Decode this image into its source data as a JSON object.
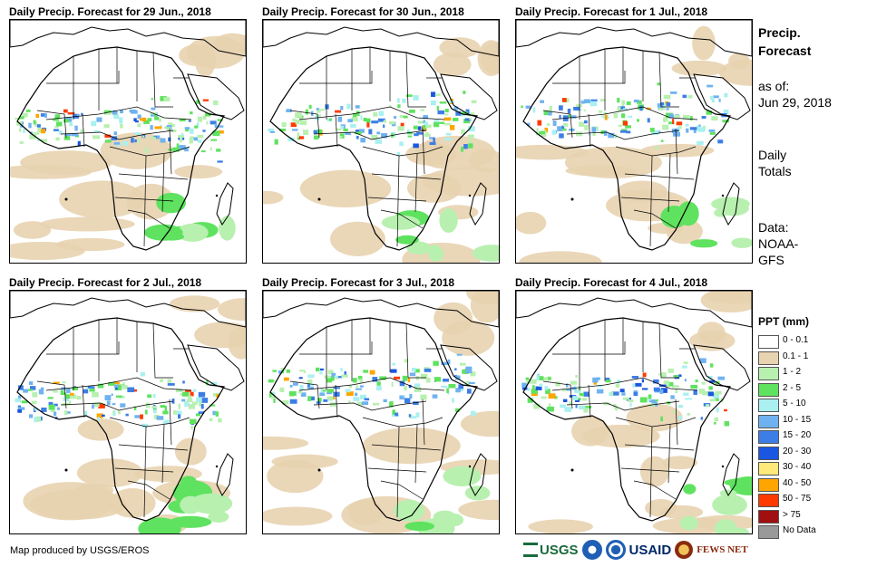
{
  "panels": [
    {
      "title": "Daily Precip. Forecast for 29 Jun., 2018"
    },
    {
      "title": "Daily Precip. Forecast for 30 Jun., 2018"
    },
    {
      "title": "Daily Precip. Forecast for 1 Jul., 2018"
    },
    {
      "title": "Daily Precip. Forecast for 2 Jul., 2018"
    },
    {
      "title": "Daily Precip. Forecast for 3 Jul., 2018"
    },
    {
      "title": "Daily Precip. Forecast for 4 Jul., 2018"
    }
  ],
  "sidebar": {
    "heading_line1": "Precip.",
    "heading_line2": "Forecast",
    "asof_label": "as of:",
    "asof_date": "Jun 29, 2018",
    "totals_line1": "Daily",
    "totals_line2": "Totals",
    "data_label": "Data:",
    "data_source_line1": "NOAA-",
    "data_source_line2": "GFS"
  },
  "legend": {
    "title": "PPT (mm)",
    "items": [
      {
        "label": "0 - 0.1",
        "color": "#ffffff"
      },
      {
        "label": "0.1 - 1",
        "color": "#e8d3b0"
      },
      {
        "label": "1 - 2",
        "color": "#b8f0b0"
      },
      {
        "label": "2 - 5",
        "color": "#5fe25f"
      },
      {
        "label": "5 - 10",
        "color": "#aaf0f0"
      },
      {
        "label": "10 - 15",
        "color": "#6fb2f0"
      },
      {
        "label": "15 - 20",
        "color": "#3d7ee6"
      },
      {
        "label": "20 - 30",
        "color": "#1a56e0"
      },
      {
        "label": "30 - 40",
        "color": "#ffe97a"
      },
      {
        "label": "40 - 50",
        "color": "#ffa500"
      },
      {
        "label": "50 - 75",
        "color": "#ff3a00"
      },
      {
        "label": "> 75",
        "color": "#a01010"
      },
      {
        "label": "No Data",
        "color": "#999999"
      }
    ]
  },
  "footer": {
    "credit": "Map produced by USGS/EROS",
    "logo_usgs": "USGS",
    "logo_usaid": "USAID",
    "logo_fews": "FEWS NET"
  }
}
